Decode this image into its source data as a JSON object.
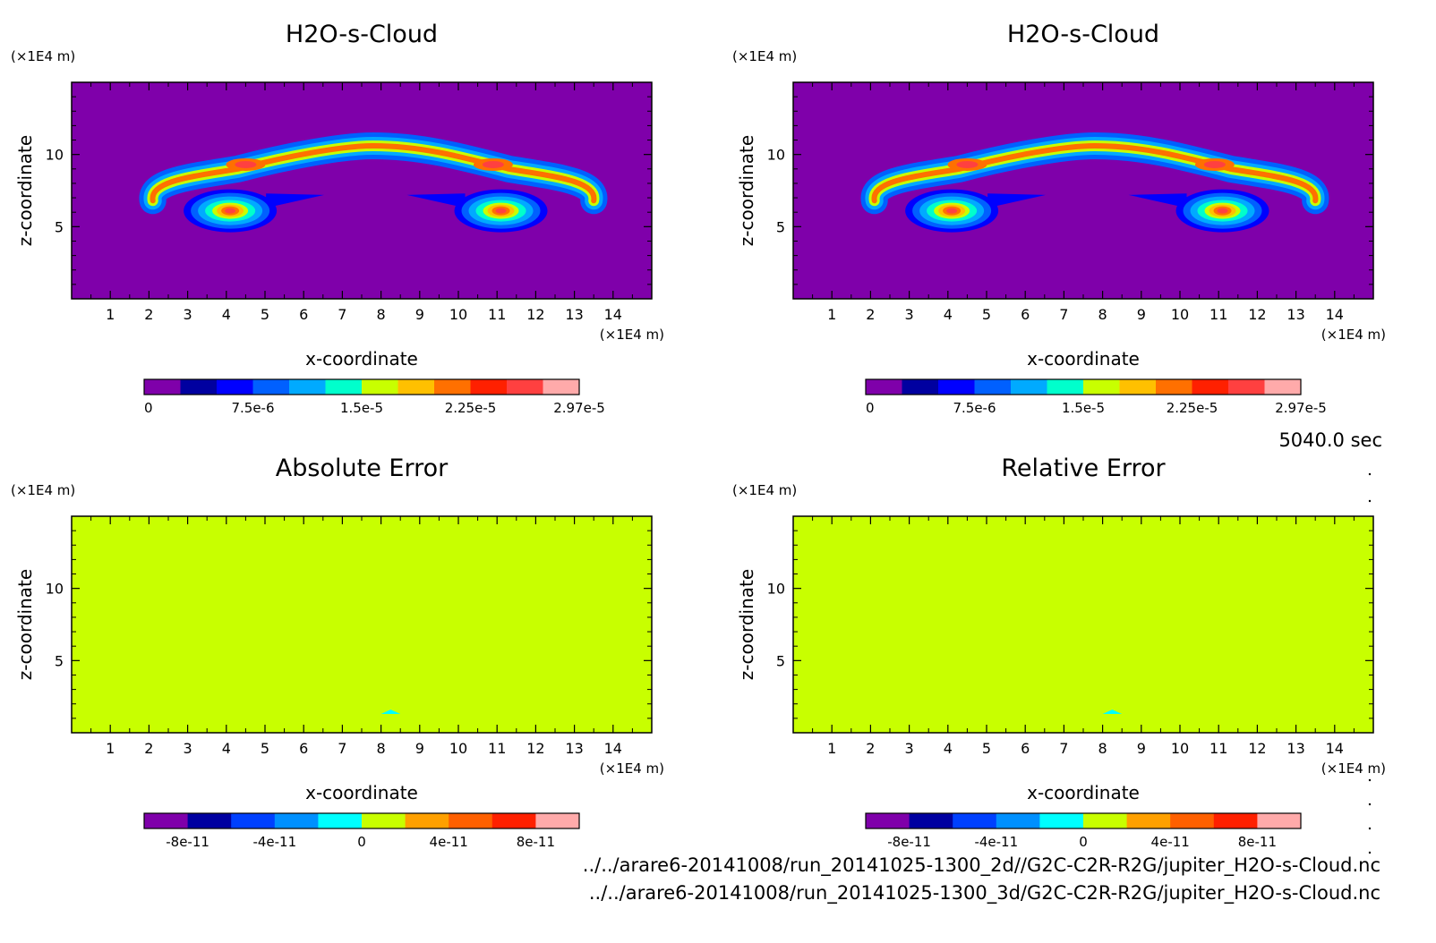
{
  "time_label": "5040.0 sec",
  "footer": {
    "line1": "../../arare6-20141008/run_20141025-1300_2d//G2C-C2R-R2G/jupiter_H2O-s-Cloud.nc",
    "line2": "../../arare6-20141008/run_20141025-1300_3d/G2C-C2R-R2G/jupiter_H2O-s-Cloud.nc"
  },
  "colors": {
    "cloud_scale": [
      "#7f00aa",
      "#0000a0",
      "#0000ff",
      "#0060ff",
      "#00aaff",
      "#00ffcc",
      "#c8ff00",
      "#ffc000",
      "#ff7000",
      "#ff2000",
      "#ff4040",
      "#ffaaaa"
    ],
    "error_scale": [
      "#7f00aa",
      "#0000a0",
      "#0040ff",
      "#0090ff",
      "#00ffff",
      "#c8ff00",
      "#ffa000",
      "#ff6000",
      "#ff2000",
      "#ffaaaa"
    ]
  },
  "chart_data": [
    {
      "type": "heatmap",
      "title": "H2O-s-Cloud",
      "xlabel": "x-coordinate",
      "ylabel": "z-coordinate",
      "x_unit": "(×1E4 m)",
      "y_unit": "(×1E4 m)",
      "xlim": [
        0,
        15
      ],
      "ylim": [
        0,
        15
      ],
      "xticks": [
        "1",
        "2",
        "3",
        "4",
        "5",
        "6",
        "7",
        "8",
        "9",
        "10",
        "11",
        "12",
        "13",
        "14"
      ],
      "yticks": [
        "5",
        "10"
      ],
      "colorbar_ticks": [
        "0",
        "7.5e-6",
        "1.5e-5",
        "2.25e-5",
        "2.97e-5"
      ],
      "field": "cloud"
    },
    {
      "type": "heatmap",
      "title": "H2O-s-Cloud",
      "xlabel": "x-coordinate",
      "ylabel": "z-coordinate",
      "x_unit": "(×1E4 m)",
      "y_unit": "(×1E4 m)",
      "xlim": [
        0,
        15
      ],
      "ylim": [
        0,
        15
      ],
      "xticks": [
        "1",
        "2",
        "3",
        "4",
        "5",
        "6",
        "7",
        "8",
        "9",
        "10",
        "11",
        "12",
        "13",
        "14"
      ],
      "yticks": [
        "5",
        "10"
      ],
      "colorbar_ticks": [
        "0",
        "7.5e-6",
        "1.5e-5",
        "2.25e-5",
        "2.97e-5"
      ],
      "field": "cloud"
    },
    {
      "type": "heatmap",
      "title": "Absolute Error",
      "xlabel": "x-coordinate",
      "ylabel": "z-coordinate",
      "x_unit": "(×1E4 m)",
      "y_unit": "(×1E4 m)",
      "xlim": [
        0,
        15
      ],
      "ylim": [
        0,
        15
      ],
      "xticks": [
        "1",
        "2",
        "3",
        "4",
        "5",
        "6",
        "7",
        "8",
        "9",
        "10",
        "11",
        "12",
        "13",
        "14"
      ],
      "yticks": [
        "5",
        "10"
      ],
      "colorbar_ticks": [
        "-8e-11",
        "-4e-11",
        "0",
        "4e-11",
        "8e-11"
      ],
      "field": "error"
    },
    {
      "type": "heatmap",
      "title": "Relative Error",
      "xlabel": "x-coordinate",
      "ylabel": "z-coordinate",
      "x_unit": "(×1E4 m)",
      "y_unit": "(×1E4 m)",
      "xlim": [
        0,
        15
      ],
      "ylim": [
        0,
        15
      ],
      "xticks": [
        "1",
        "2",
        "3",
        "4",
        "5",
        "6",
        "7",
        "8",
        "9",
        "10",
        "11",
        "12",
        "13",
        "14"
      ],
      "yticks": [
        "5",
        "10"
      ],
      "colorbar_ticks": [
        "-8e-11",
        "-4e-11",
        "0",
        "4e-11",
        "8e-11"
      ],
      "field": "error"
    }
  ]
}
